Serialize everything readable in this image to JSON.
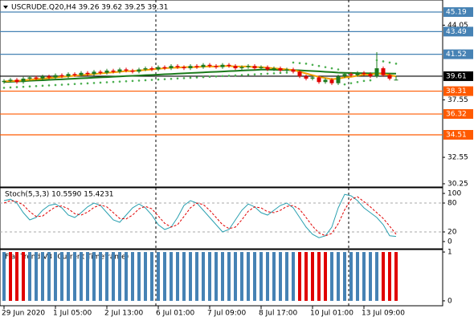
{
  "chart_data": [
    {
      "type": "candlestick",
      "title": "USCRUDE.Q20,H4  39.26 39.62 39.25 39.31",
      "categories": [
        "29 Jun 2020",
        null,
        null,
        null,
        null,
        null,
        null,
        null,
        "1 Jul 05:00",
        null,
        null,
        null,
        null,
        null,
        null,
        null,
        "2 Jul 13:00",
        null,
        null,
        null,
        null,
        null,
        null,
        null,
        "6 Jul 01:00",
        null,
        null,
        null,
        null,
        null,
        null,
        null,
        "7 Jul 09:00",
        null,
        null,
        null,
        null,
        null,
        null,
        null,
        "8 Jul 17:00",
        null,
        null,
        null,
        null,
        null,
        null,
        null,
        "10 Jul 01:00",
        null,
        null,
        null,
        null,
        null,
        null,
        null,
        "13 Jul 09:00",
        null,
        null,
        null,
        null,
        null
      ],
      "open": [
        39.1,
        39.2,
        39.3,
        39.1,
        39.4,
        39.5,
        39.4,
        39.6,
        39.5,
        39.7,
        39.6,
        39.8,
        39.7,
        39.9,
        39.8,
        40.0,
        39.9,
        40.1,
        40.0,
        40.2,
        40.1,
        40.0,
        40.2,
        40.3,
        40.2,
        40.4,
        40.3,
        40.5,
        40.4,
        40.3,
        40.5,
        40.4,
        40.6,
        40.5,
        40.4,
        40.6,
        40.5,
        40.3,
        40.4,
        40.5,
        40.3,
        40.4,
        40.2,
        40.3,
        40.1,
        40.2,
        40.0,
        39.6,
        39.4,
        39.5,
        39.1,
        39.3,
        39.0,
        39.6,
        39.8,
        39.7,
        39.9,
        39.8,
        39.6,
        40.3,
        39.7,
        39.26
      ],
      "high": [
        39.35,
        39.45,
        39.45,
        39.55,
        39.65,
        39.65,
        39.75,
        39.75,
        39.85,
        39.85,
        39.95,
        39.95,
        40.05,
        40.05,
        40.15,
        40.15,
        40.25,
        40.25,
        40.35,
        40.35,
        40.25,
        40.35,
        40.45,
        40.45,
        40.55,
        40.55,
        40.65,
        40.65,
        40.55,
        40.65,
        40.65,
        40.75,
        40.75,
        40.65,
        40.75,
        40.75,
        40.65,
        40.55,
        40.65,
        40.65,
        40.55,
        40.55,
        40.45,
        40.45,
        40.35,
        40.35,
        40.15,
        39.75,
        39.65,
        39.65,
        39.45,
        39.45,
        39.75,
        39.95,
        39.95,
        40.05,
        40.05,
        39.95,
        41.7,
        40.45,
        39.85,
        39.62
      ],
      "low": [
        38.95,
        39.05,
        38.95,
        38.95,
        39.25,
        39.25,
        39.25,
        39.35,
        39.35,
        39.45,
        39.45,
        39.55,
        39.55,
        39.65,
        39.65,
        39.75,
        39.75,
        39.85,
        39.85,
        39.95,
        39.85,
        39.85,
        40.05,
        40.05,
        40.05,
        40.15,
        40.15,
        40.25,
        40.15,
        40.15,
        40.25,
        40.25,
        40.35,
        40.25,
        40.25,
        40.35,
        40.15,
        40.15,
        40.25,
        40.15,
        40.15,
        40.05,
        40.05,
        39.95,
        39.95,
        39.85,
        39.45,
        39.25,
        39.25,
        38.95,
        38.95,
        38.85,
        38.85,
        39.45,
        39.55,
        39.55,
        39.65,
        39.45,
        39.45,
        39.55,
        39.25,
        39.25
      ],
      "close": [
        39.2,
        39.3,
        39.1,
        39.4,
        39.5,
        39.4,
        39.6,
        39.5,
        39.7,
        39.6,
        39.8,
        39.7,
        39.9,
        39.8,
        40.0,
        39.9,
        40.1,
        40.0,
        40.2,
        40.1,
        40.0,
        40.2,
        40.3,
        40.2,
        40.4,
        40.3,
        40.5,
        40.4,
        40.3,
        40.5,
        40.4,
        40.6,
        40.5,
        40.4,
        40.6,
        40.5,
        40.3,
        40.4,
        40.5,
        40.3,
        40.4,
        40.2,
        40.3,
        40.1,
        40.2,
        40.0,
        39.6,
        39.4,
        39.5,
        39.1,
        39.3,
        39.0,
        39.6,
        39.8,
        39.7,
        39.9,
        39.8,
        39.6,
        40.3,
        39.7,
        39.4,
        39.31
      ],
      "ma_fast": [
        39.15,
        39.2,
        39.2,
        39.25,
        39.3,
        39.35,
        39.4,
        39.45,
        39.5,
        39.55,
        39.6,
        39.65,
        39.7,
        39.75,
        39.8,
        39.85,
        39.9,
        39.95,
        40.0,
        40.05,
        40.05,
        40.1,
        40.15,
        40.2,
        40.25,
        40.3,
        40.35,
        40.35,
        40.4,
        40.4,
        40.4,
        40.45,
        40.45,
        40.45,
        40.5,
        40.5,
        40.45,
        40.45,
        40.45,
        40.4,
        40.4,
        40.35,
        40.3,
        40.25,
        40.2,
        40.15,
        40.0,
        39.85,
        39.7,
        39.55,
        39.45,
        39.35,
        39.4,
        39.5,
        39.55,
        39.65,
        39.75,
        39.75,
        39.85,
        39.8,
        39.7,
        39.6
      ],
      "ma_slow": [
        39.1,
        39.13,
        39.15,
        39.18,
        39.21,
        39.24,
        39.26,
        39.29,
        39.32,
        39.34,
        39.37,
        39.4,
        39.43,
        39.45,
        39.48,
        39.51,
        39.53,
        39.56,
        39.59,
        39.62,
        39.64,
        39.67,
        39.7,
        39.72,
        39.75,
        39.78,
        39.8,
        39.83,
        39.86,
        39.89,
        39.91,
        39.94,
        39.97,
        39.99,
        40.02,
        40.05,
        40.07,
        40.1,
        40.13,
        40.15,
        40.18,
        40.18,
        40.17,
        40.16,
        40.15,
        40.14,
        40.12,
        40.09,
        40.06,
        40.03,
        39.99,
        39.96,
        39.92,
        39.9,
        39.89,
        39.88,
        39.87,
        39.86,
        39.85,
        39.85,
        39.84,
        39.83
      ],
      "sar": [
        38.6,
        38.63,
        38.66,
        38.69,
        38.72,
        38.75,
        38.78,
        38.81,
        38.84,
        38.87,
        38.9,
        38.93,
        38.96,
        38.99,
        39.02,
        39.05,
        39.08,
        39.11,
        39.14,
        39.17,
        39.2,
        39.23,
        39.26,
        39.29,
        39.32,
        39.35,
        39.38,
        39.41,
        39.44,
        39.47,
        39.5,
        39.53,
        39.56,
        39.59,
        39.62,
        39.65,
        39.68,
        39.71,
        39.74,
        39.77,
        39.8,
        39.83,
        39.86,
        39.89,
        39.92,
        40.8,
        40.75,
        40.7,
        40.6,
        40.5,
        40.4,
        40.3,
        40.2,
        38.9,
        39.0,
        39.1,
        39.2,
        39.25,
        41.0,
        40.9,
        40.8,
        40.7
      ],
      "up_color": "#1e7b1e",
      "down_color": "#e00000",
      "ma_fast_color": "#f5a000",
      "ma_slow_color": "#1a7a1a",
      "sar_color": "#4caf50",
      "ylim": [
        29.97,
        46.24
      ],
      "yticks": [
        44.05,
        37.55,
        32.55,
        30.25
      ],
      "levels": [
        {
          "value": 45.19,
          "color": "#4682b4"
        },
        {
          "value": 43.49,
          "color": "#4682b4"
        },
        {
          "value": 41.52,
          "color": "#4682b4"
        },
        {
          "value": 39.61,
          "color": "#000000"
        },
        {
          "value": 38.31,
          "color": "#ff5a00"
        },
        {
          "value": 36.32,
          "color": "#ff5a00"
        },
        {
          "value": 34.51,
          "color": "#ff5a00"
        }
      ]
    },
    {
      "type": "line",
      "title": "Stoch(5,3,3) 10.5590 15.4231",
      "series": [
        {
          "color": "#2aa0b0",
          "dash": false,
          "values": [
            85,
            88,
            80,
            60,
            45,
            50,
            65,
            75,
            78,
            70,
            55,
            50,
            60,
            72,
            80,
            75,
            60,
            45,
            40,
            55,
            70,
            78,
            70,
            55,
            35,
            25,
            30,
            50,
            75,
            85,
            80,
            65,
            50,
            35,
            20,
            25,
            45,
            65,
            78,
            72,
            60,
            55,
            65,
            75,
            80,
            70,
            50,
            30,
            15,
            8,
            12,
            30,
            70,
            98,
            95,
            85,
            70,
            60,
            50,
            35,
            12,
            10.56
          ]
        },
        {
          "color": "#e00000",
          "dash": true,
          "values": [
            80,
            85,
            83,
            76,
            62,
            52,
            53,
            63,
            72,
            74,
            68,
            58,
            55,
            61,
            71,
            76,
            72,
            60,
            48,
            47,
            55,
            68,
            73,
            68,
            53,
            38,
            30,
            35,
            52,
            70,
            80,
            77,
            65,
            50,
            35,
            27,
            30,
            45,
            63,
            72,
            70,
            62,
            60,
            65,
            73,
            75,
            67,
            50,
            32,
            18,
            12,
            17,
            37,
            66,
            88,
            93,
            83,
            72,
            60,
            48,
            32,
            15.42
          ]
        }
      ],
      "ylim": [
        -15,
        111.7
      ],
      "yticks": [
        0,
        20,
        80,
        100
      ],
      "levels": [
        20,
        80
      ]
    },
    {
      "type": "bar",
      "title": "Flat Trend V3 (Current Timeframe)",
      "values": [
        1,
        1,
        1,
        1,
        1,
        1,
        1,
        1,
        1,
        1,
        1,
        1,
        1,
        1,
        1,
        1,
        1,
        1,
        1,
        1,
        1,
        1,
        1,
        1,
        1,
        1,
        1,
        1,
        1,
        1,
        1,
        1,
        1,
        1,
        1,
        1,
        1,
        1,
        1,
        1,
        1,
        1,
        1,
        1,
        1,
        1,
        1,
        1,
        1,
        1,
        1,
        1,
        1,
        1,
        1,
        1,
        1,
        1,
        1,
        1,
        1,
        1
      ],
      "colors": [
        "#4682b4",
        "#e00000",
        "#e00000",
        "#e00000",
        "#4682b4",
        "#4682b4",
        "#4682b4",
        "#4682b4",
        "#4682b4",
        "#4682b4",
        "#4682b4",
        "#4682b4",
        "#4682b4",
        "#4682b4",
        "#4682b4",
        "#4682b4",
        "#4682b4",
        "#4682b4",
        "#4682b4",
        "#4682b4",
        "#4682b4",
        "#4682b4",
        "#4682b4",
        "#4682b4",
        "#4682b4",
        "#4682b4",
        "#4682b4",
        "#4682b4",
        "#4682b4",
        "#4682b4",
        "#4682b4",
        "#4682b4",
        "#4682b4",
        "#4682b4",
        "#4682b4",
        "#4682b4",
        "#4682b4",
        "#4682b4",
        "#4682b4",
        "#4682b4",
        "#4682b4",
        "#4682b4",
        "#4682b4",
        "#4682b4",
        "#4682b4",
        "#4682b4",
        "#e00000",
        "#e00000",
        "#e00000",
        "#e00000",
        "#e00000",
        "#4682b4",
        "#4682b4",
        "#4682b4",
        "#4682b4",
        "#4682b4",
        "#4682b4",
        "#4682b4",
        "#4682b4",
        "#e00000",
        "#e00000",
        "#e00000"
      ],
      "ylim": [
        -0.1,
        1.05
      ],
      "yticks": [
        0,
        1
      ]
    }
  ]
}
